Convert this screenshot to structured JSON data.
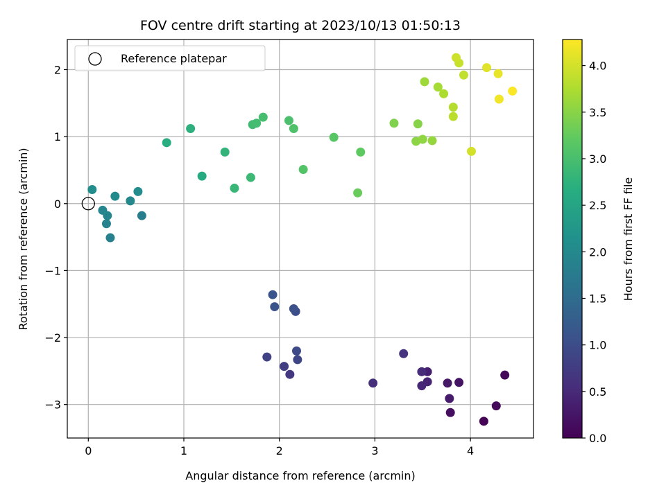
{
  "chart_data": {
    "type": "scatter",
    "title": "FOV centre drift starting at 2023/10/13 01:50:13",
    "xlabel": "Angular distance from reference (arcmin)",
    "ylabel": "Rotation from reference (arcmin)",
    "xlim": [
      -0.22,
      4.66
    ],
    "ylim": [
      -3.5,
      2.45
    ],
    "x_ticks": [
      0,
      1,
      2,
      3,
      4
    ],
    "y_ticks": [
      -3,
      -2,
      -1,
      0,
      1,
      2
    ],
    "x_tick_labels": [
      "0",
      "1",
      "2",
      "3",
      "4"
    ],
    "y_tick_labels": [
      "−3",
      "−2",
      "−1",
      "0",
      "1",
      "2"
    ],
    "grid": true,
    "legend": {
      "position": "upper-left",
      "entries": [
        {
          "label": "Reference platepar",
          "marker": "open-circle"
        }
      ]
    },
    "reference_point": {
      "x": 0,
      "y": 0
    },
    "colorbar": {
      "label": "Hours from first FF file",
      "colormap": "viridis",
      "range": [
        0.0,
        4.28
      ],
      "ticks": [
        0.0,
        0.5,
        1.0,
        1.5,
        2.0,
        2.5,
        3.0,
        3.5,
        4.0
      ],
      "tick_labels": [
        "0.0",
        "0.5",
        "1.0",
        "1.5",
        "2.0",
        "2.5",
        "3.0",
        "3.5",
        "4.0"
      ]
    },
    "points": [
      {
        "x": 4.14,
        "y": -3.25,
        "t": 0.02
      },
      {
        "x": 4.36,
        "y": -2.56,
        "t": 0.06
      },
      {
        "x": 4.27,
        "y": -3.02,
        "t": 0.1
      },
      {
        "x": 3.79,
        "y": -3.12,
        "t": 0.16
      },
      {
        "x": 3.88,
        "y": -2.67,
        "t": 0.22
      },
      {
        "x": 3.76,
        "y": -2.68,
        "t": 0.28
      },
      {
        "x": 3.78,
        "y": -2.91,
        "t": 0.32
      },
      {
        "x": 3.55,
        "y": -2.51,
        "t": 0.38
      },
      {
        "x": 3.55,
        "y": -2.66,
        "t": 0.42
      },
      {
        "x": 3.49,
        "y": -2.72,
        "t": 0.48
      },
      {
        "x": 3.49,
        "y": -2.51,
        "t": 0.52
      },
      {
        "x": 2.98,
        "y": -2.68,
        "t": 0.58
      },
      {
        "x": 3.3,
        "y": -2.24,
        "t": 0.62
      },
      {
        "x": 2.11,
        "y": -2.55,
        "t": 0.7
      },
      {
        "x": 2.05,
        "y": -2.43,
        "t": 0.78
      },
      {
        "x": 1.87,
        "y": -2.29,
        "t": 0.84
      },
      {
        "x": 2.19,
        "y": -2.33,
        "t": 0.9
      },
      {
        "x": 2.18,
        "y": -2.2,
        "t": 0.94
      },
      {
        "x": 2.17,
        "y": -1.61,
        "t": 1.0
      },
      {
        "x": 2.15,
        "y": -1.57,
        "t": 1.04
      },
      {
        "x": 1.95,
        "y": -1.54,
        "t": 1.08
      },
      {
        "x": 1.93,
        "y": -1.36,
        "t": 1.12
      },
      {
        "x": 0.56,
        "y": -0.18,
        "t": 1.8
      },
      {
        "x": 0.23,
        "y": -0.51,
        "t": 1.84
      },
      {
        "x": 0.19,
        "y": -0.3,
        "t": 1.88
      },
      {
        "x": 0.2,
        "y": -0.18,
        "t": 1.92
      },
      {
        "x": 0.15,
        "y": -0.1,
        "t": 1.95
      },
      {
        "x": 0.44,
        "y": 0.04,
        "t": 1.98
      },
      {
        "x": 0.28,
        "y": 0.11,
        "t": 2.02
      },
      {
        "x": 0.52,
        "y": 0.18,
        "t": 2.05
      },
      {
        "x": 0.04,
        "y": 0.21,
        "t": 2.08
      },
      {
        "x": 1.19,
        "y": 0.41,
        "t": 2.6
      },
      {
        "x": 0.82,
        "y": 0.91,
        "t": 2.66
      },
      {
        "x": 1.07,
        "y": 1.12,
        "t": 2.72
      },
      {
        "x": 1.43,
        "y": 0.77,
        "t": 2.78
      },
      {
        "x": 1.53,
        "y": 0.23,
        "t": 2.84
      },
      {
        "x": 1.7,
        "y": 0.39,
        "t": 2.88
      },
      {
        "x": 1.72,
        "y": 1.18,
        "t": 2.92
      },
      {
        "x": 1.76,
        "y": 1.2,
        "t": 2.95
      },
      {
        "x": 1.83,
        "y": 1.29,
        "t": 2.98
      },
      {
        "x": 2.1,
        "y": 1.24,
        "t": 3.02
      },
      {
        "x": 2.15,
        "y": 1.12,
        "t": 3.06
      },
      {
        "x": 2.25,
        "y": 0.51,
        "t": 3.1
      },
      {
        "x": 2.57,
        "y": 0.99,
        "t": 3.16
      },
      {
        "x": 2.85,
        "y": 0.77,
        "t": 3.22
      },
      {
        "x": 2.82,
        "y": 0.16,
        "t": 3.28
      },
      {
        "x": 3.2,
        "y": 1.2,
        "t": 3.44
      },
      {
        "x": 3.45,
        "y": 1.19,
        "t": 3.48
      },
      {
        "x": 3.43,
        "y": 0.93,
        "t": 3.52
      },
      {
        "x": 3.5,
        "y": 0.96,
        "t": 3.55
      },
      {
        "x": 3.6,
        "y": 0.94,
        "t": 3.58
      },
      {
        "x": 3.52,
        "y": 1.82,
        "t": 3.65
      },
      {
        "x": 3.66,
        "y": 1.74,
        "t": 3.7
      },
      {
        "x": 3.72,
        "y": 1.64,
        "t": 3.74
      },
      {
        "x": 3.82,
        "y": 1.44,
        "t": 3.8
      },
      {
        "x": 3.82,
        "y": 1.3,
        "t": 3.84
      },
      {
        "x": 3.93,
        "y": 1.92,
        "t": 3.88
      },
      {
        "x": 3.88,
        "y": 2.1,
        "t": 3.92
      },
      {
        "x": 3.85,
        "y": 2.18,
        "t": 3.96
      },
      {
        "x": 4.01,
        "y": 0.78,
        "t": 4.0
      },
      {
        "x": 4.17,
        "y": 2.03,
        "t": 4.08
      },
      {
        "x": 4.29,
        "y": 1.94,
        "t": 4.14
      },
      {
        "x": 4.3,
        "y": 1.56,
        "t": 4.2
      },
      {
        "x": 4.44,
        "y": 1.68,
        "t": 4.26
      }
    ]
  }
}
